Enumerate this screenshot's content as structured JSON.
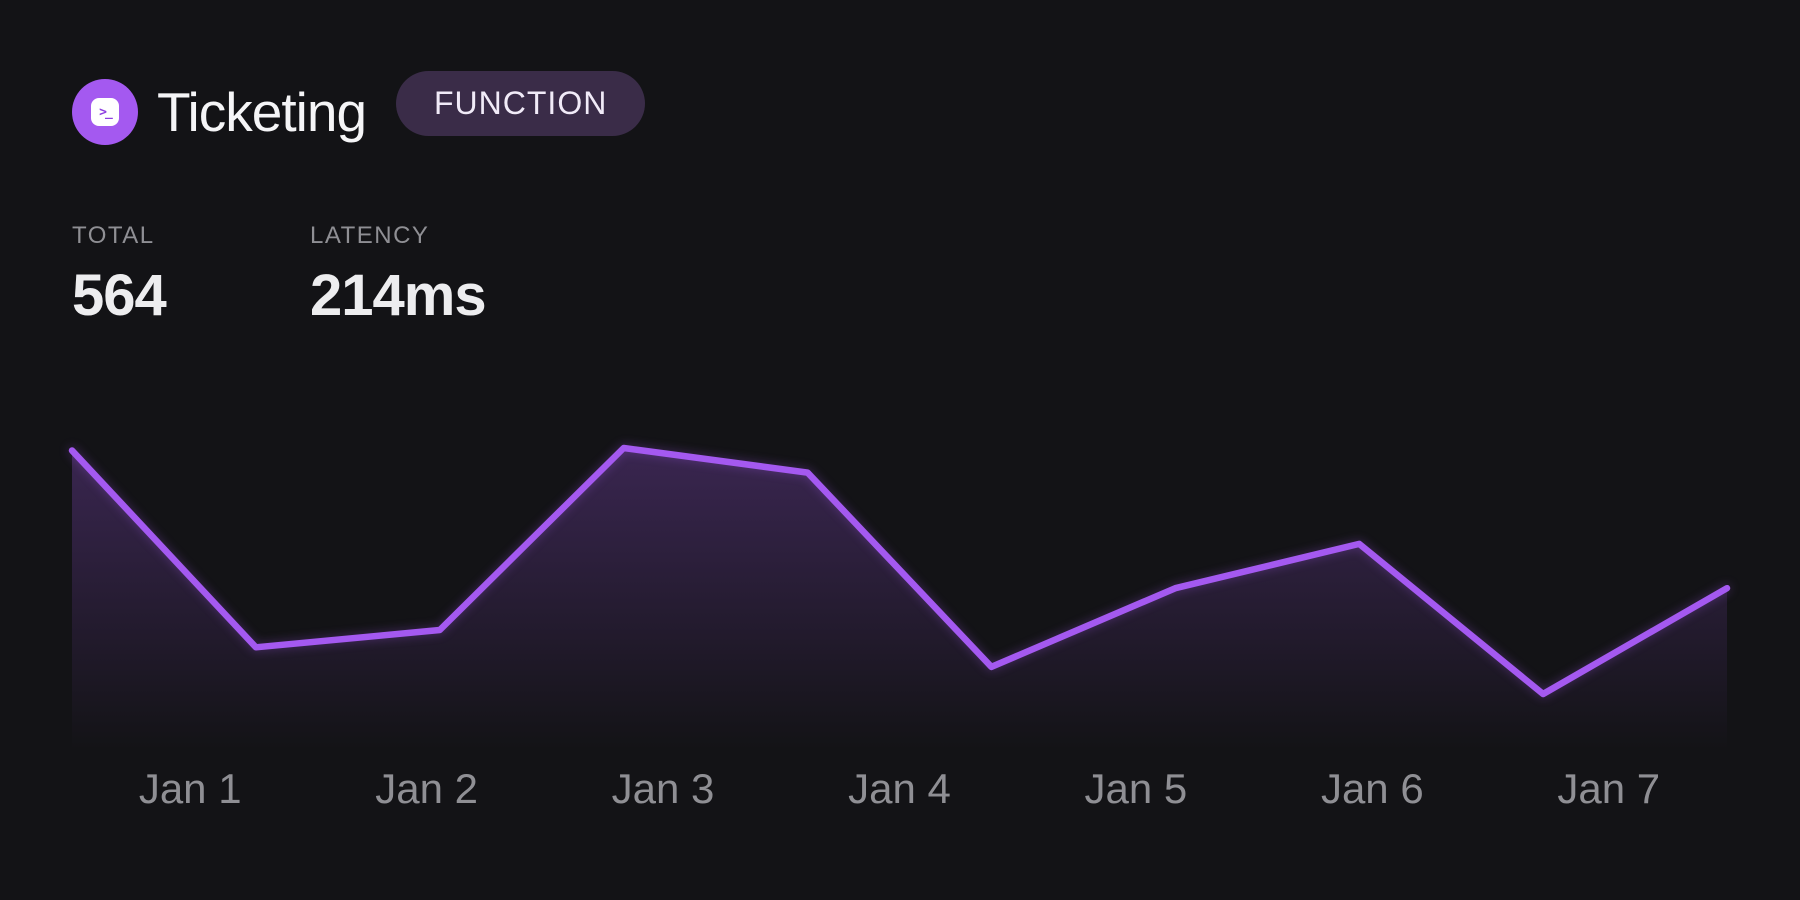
{
  "header": {
    "title": "Ticketing",
    "badge": "FUNCTION",
    "icon_glyph": ">_"
  },
  "stats": {
    "items": [
      {
        "label": "TOTAL",
        "value": "564"
      },
      {
        "label": "LATENCY",
        "value": "214ms"
      }
    ]
  },
  "colors": {
    "accent": "#a459f0",
    "background": "#131316",
    "badge_bg": "#3a2c48",
    "label_gray": "#8f8f94"
  },
  "chart_data": {
    "type": "area",
    "title": "",
    "xlabel": "",
    "ylabel": "",
    "categories": [
      "Jan 1",
      "Jan 2",
      "Jan 3",
      "Jan 4",
      "Jan 5",
      "Jan 6",
      "Jan 7"
    ],
    "values": [
      99,
      19,
      26,
      100,
      90,
      11,
      43,
      61,
      0,
      43
    ],
    "ylim": [
      0,
      100
    ],
    "y_axis": "none shown - values are relative (percent of max height)",
    "points_note": "10 evenly spaced points across 7 day labels",
    "grid": false,
    "legend": false,
    "line_color": "#a459f0",
    "fill": "vertical gradient of line color fading to transparent"
  }
}
